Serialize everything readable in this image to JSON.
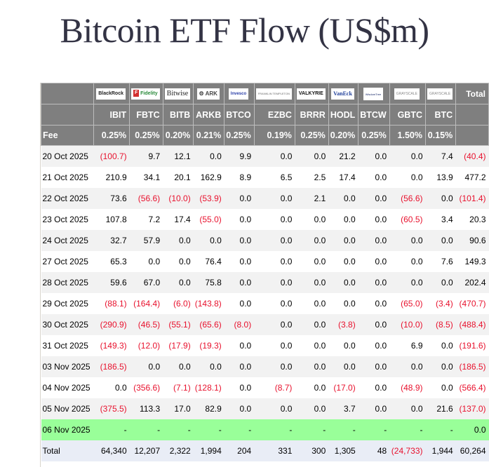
{
  "page": {
    "title": "Bitcoin ETF Flow (US$m)"
  },
  "table": {
    "fee_label": "Fee",
    "total_header": "Total",
    "columns": [
      {
        "ticker": "IBIT",
        "issuer": "BlackRock",
        "logo_text": "BlackRock",
        "fee": "0.25%"
      },
      {
        "ticker": "FBTC",
        "issuer": "Fidelity",
        "logo_text": "Fidelity",
        "fee": "0.25%"
      },
      {
        "ticker": "BITB",
        "issuer": "Bitwise",
        "logo_text": "Bitwise",
        "fee": "0.20%"
      },
      {
        "ticker": "ARKB",
        "issuer": "ARK Invest",
        "logo_text": "ARK",
        "fee": "0.21%"
      },
      {
        "ticker": "BTCO",
        "issuer": "Invesco",
        "logo_text": "Invesco",
        "fee": "0.25%"
      },
      {
        "ticker": "EZBC",
        "issuer": "Franklin Templeton",
        "logo_text": "FRANKLIN TEMPLETON",
        "fee": "0.19%"
      },
      {
        "ticker": "BRRR",
        "issuer": "Valkyrie",
        "logo_text": "VALKYRIE",
        "fee": "0.25%"
      },
      {
        "ticker": "HODL",
        "issuer": "VanEck",
        "logo_text": "VanEck",
        "fee": "0.20%"
      },
      {
        "ticker": "BTCW",
        "issuer": "WisdomTree",
        "logo_text": "WisdomTree",
        "fee": "0.25%"
      },
      {
        "ticker": "GBTC",
        "issuer": "Grayscale",
        "logo_text": "GRAYSCALE",
        "fee": "1.50%"
      },
      {
        "ticker": "BTC",
        "issuer": "Grayscale",
        "logo_text": "GRAYSCALE",
        "fee": "0.15%"
      }
    ],
    "rows": [
      {
        "date": "20 Oct 2025",
        "values": [
          "(100.7)",
          "9.7",
          "12.1",
          "0.0",
          "9.9",
          "0.0",
          "0.0",
          "21.2",
          "0.0",
          "0.0",
          "7.4"
        ],
        "total": "(40.4)"
      },
      {
        "date": "21 Oct 2025",
        "values": [
          "210.9",
          "34.1",
          "20.1",
          "162.9",
          "8.9",
          "6.5",
          "2.5",
          "17.4",
          "0.0",
          "0.0",
          "13.9"
        ],
        "total": "477.2"
      },
      {
        "date": "22 Oct 2025",
        "values": [
          "73.6",
          "(56.6)",
          "(10.0)",
          "(53.9)",
          "0.0",
          "0.0",
          "2.1",
          "0.0",
          "0.0",
          "(56.6)",
          "0.0"
        ],
        "total": "(101.4)"
      },
      {
        "date": "23 Oct 2025",
        "values": [
          "107.8",
          "7.2",
          "17.4",
          "(55.0)",
          "0.0",
          "0.0",
          "0.0",
          "0.0",
          "0.0",
          "(60.5)",
          "3.4"
        ],
        "total": "20.3"
      },
      {
        "date": "24 Oct 2025",
        "values": [
          "32.7",
          "57.9",
          "0.0",
          "0.0",
          "0.0",
          "0.0",
          "0.0",
          "0.0",
          "0.0",
          "0.0",
          "0.0"
        ],
        "total": "90.6"
      },
      {
        "date": "27 Oct 2025",
        "values": [
          "65.3",
          "0.0",
          "0.0",
          "76.4",
          "0.0",
          "0.0",
          "0.0",
          "0.0",
          "0.0",
          "0.0",
          "7.6"
        ],
        "total": "149.3"
      },
      {
        "date": "28 Oct 2025",
        "values": [
          "59.6",
          "67.0",
          "0.0",
          "75.8",
          "0.0",
          "0.0",
          "0.0",
          "0.0",
          "0.0",
          "0.0",
          "0.0"
        ],
        "total": "202.4"
      },
      {
        "date": "29 Oct 2025",
        "values": [
          "(88.1)",
          "(164.4)",
          "(6.0)",
          "(143.8)",
          "0.0",
          "0.0",
          "0.0",
          "0.0",
          "0.0",
          "(65.0)",
          "(3.4)"
        ],
        "total": "(470.7)"
      },
      {
        "date": "30 Oct 2025",
        "values": [
          "(290.9)",
          "(46.5)",
          "(55.1)",
          "(65.6)",
          "(8.0)",
          "0.0",
          "0.0",
          "(3.8)",
          "0.0",
          "(10.0)",
          "(8.5)"
        ],
        "total": "(488.4)"
      },
      {
        "date": "31 Oct 2025",
        "values": [
          "(149.3)",
          "(12.0)",
          "(17.9)",
          "(19.3)",
          "0.0",
          "0.0",
          "0.0",
          "0.0",
          "0.0",
          "6.9",
          "0.0"
        ],
        "total": "(191.6)"
      },
      {
        "date": "03 Nov 2025",
        "values": [
          "(186.5)",
          "0.0",
          "0.0",
          "0.0",
          "0.0",
          "0.0",
          "0.0",
          "0.0",
          "0.0",
          "0.0",
          "0.0"
        ],
        "total": "(186.5)"
      },
      {
        "date": "04 Nov 2025",
        "values": [
          "0.0",
          "(356.6)",
          "(7.1)",
          "(128.1)",
          "0.0",
          "(8.7)",
          "0.0",
          "(17.0)",
          "0.0",
          "(48.9)",
          "0.0"
        ],
        "total": "(566.4)"
      },
      {
        "date": "05 Nov 2025",
        "values": [
          "(375.5)",
          "113.3",
          "17.0",
          "82.9",
          "0.0",
          "0.0",
          "0.0",
          "3.7",
          "0.0",
          "0.0",
          "21.6"
        ],
        "total": "(137.0)"
      },
      {
        "date": "06 Nov 2025",
        "values": [
          "-",
          "-",
          "-",
          "-",
          "-",
          "-",
          "-",
          "-",
          "-",
          "-",
          "-"
        ],
        "total": "0.0",
        "pending": true
      }
    ],
    "totals_row": {
      "label": "Total",
      "values": [
        "64,340",
        "12,207",
        "2,322",
        "1,994",
        "204",
        "331",
        "300",
        "1,305",
        "48",
        "(24,733)",
        "1,944"
      ],
      "total": "60,264"
    }
  },
  "colors": {
    "header_bg": "#7f7f7f",
    "negative": "#e8112d",
    "pending_row": "#99ff99",
    "total_row": "#e9edf6",
    "stripe": "#f2f2f2",
    "title": "#333344"
  }
}
